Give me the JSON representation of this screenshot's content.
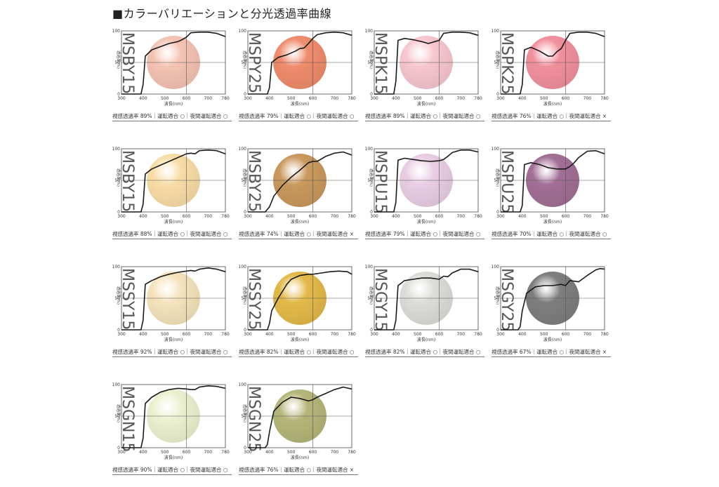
{
  "page_title": "■カラーバリエーションと分光透過率曲線",
  "axis": {
    "x_ticks": [
      "300",
      "400",
      "500",
      "600",
      "700",
      "780"
    ],
    "y_ticks": [
      "100",
      "50",
      "0"
    ],
    "y_label": "透過率(%)",
    "x_label": "波長(nm)"
  },
  "chart_data": [
    {
      "type": "line",
      "title": "MSBY15",
      "swatch_color": "#f4c3b3",
      "xlabel": "波長(nm)",
      "ylabel": "透過率(%)",
      "xlim": [
        300,
        780
      ],
      "ylim": [
        0,
        100
      ],
      "x": [
        300,
        390,
        400,
        410,
        440,
        480,
        520,
        560,
        580,
        600,
        620,
        660,
        700,
        740,
        780
      ],
      "y": [
        0,
        0,
        15,
        60,
        70,
        75,
        80,
        83,
        86,
        90,
        97,
        98,
        98,
        96,
        91
      ],
      "spec": {
        "visible_transmittance": "視感透過率 89%",
        "driving": "運転適合 ○",
        "night_driving": "夜間運転適合 ○"
      }
    },
    {
      "type": "line",
      "title": "MSPY25",
      "swatch_color": "#ef8c6c",
      "xlabel": "波長(nm)",
      "ylabel": "透過率(%)",
      "xlim": [
        300,
        780
      ],
      "ylim": [
        0,
        100
      ],
      "x": [
        300,
        390,
        400,
        410,
        440,
        480,
        520,
        540,
        560,
        580,
        600,
        620,
        660,
        700,
        740,
        780
      ],
      "y": [
        0,
        0,
        10,
        50,
        58,
        62,
        68,
        72,
        73,
        80,
        88,
        94,
        97,
        98,
        97,
        93
      ],
      "spec": {
        "visible_transmittance": "視感透過率 79%",
        "driving": "運転適合 ○",
        "night_driving": "夜間運転適合 ○"
      }
    },
    {
      "type": "line",
      "title": "MSPK15",
      "swatch_color": "#f7c6cf",
      "xlabel": "波長(nm)",
      "ylabel": "透過率(%)",
      "xlim": [
        300,
        780
      ],
      "ylim": [
        0,
        100
      ],
      "x": [
        300,
        390,
        400,
        410,
        440,
        480,
        520,
        550,
        580,
        600,
        620,
        660,
        700,
        740,
        780
      ],
      "y": [
        0,
        0,
        20,
        85,
        88,
        86,
        83,
        80,
        83,
        85,
        96,
        98,
        98,
        97,
        93
      ],
      "spec": {
        "visible_transmittance": "視感透過率 89%",
        "driving": "運転適合 ○",
        "night_driving": "夜間運転適合 ○"
      }
    },
    {
      "type": "line",
      "title": "MSPK25",
      "swatch_color": "#f1909d",
      "xlabel": "波長(nm)",
      "ylabel": "透過率(%)",
      "xlim": [
        300,
        780
      ],
      "ylim": [
        0,
        100
      ],
      "x": [
        300,
        390,
        400,
        410,
        440,
        480,
        520,
        540,
        560,
        580,
        600,
        620,
        660,
        700,
        740,
        780
      ],
      "y": [
        0,
        0,
        15,
        70,
        74,
        68,
        60,
        60,
        67,
        72,
        85,
        96,
        98,
        98,
        96,
        91
      ],
      "spec": {
        "visible_transmittance": "視感透過率 76%",
        "driving": "運転適合 ○",
        "night_driving": "夜間運転適合 ×"
      }
    },
    {
      "type": "line",
      "title": "MSBY15",
      "swatch_color": "#f9dda6",
      "xlabel": "波長(nm)",
      "ylabel": "透過率(%)",
      "xlim": [
        300,
        780
      ],
      "ylim": [
        0,
        100
      ],
      "x": [
        300,
        390,
        400,
        410,
        440,
        480,
        520,
        560,
        600,
        620,
        640,
        660,
        700,
        740,
        780
      ],
      "y": [
        0,
        0,
        12,
        60,
        68,
        74,
        80,
        86,
        92,
        93,
        92,
        97,
        98,
        97,
        92
      ],
      "spec": {
        "visible_transmittance": "視感透過率 88%",
        "driving": "運転適合 ○",
        "night_driving": "夜間運転適合 ○"
      }
    },
    {
      "type": "line",
      "title": "MSBY25",
      "swatch_color": "#c9995e",
      "xlabel": "波長(nm)",
      "ylabel": "透過率(%)",
      "xlim": [
        300,
        780
      ],
      "ylim": [
        0,
        100
      ],
      "x": [
        300,
        380,
        400,
        420,
        460,
        500,
        540,
        580,
        600,
        620,
        660,
        700,
        740,
        780
      ],
      "y": [
        0,
        0,
        8,
        25,
        42,
        55,
        66,
        78,
        80,
        80,
        88,
        93,
        95,
        90
      ],
      "spec": {
        "visible_transmittance": "視感透過率 74%",
        "driving": "運転適合 ○",
        "night_driving": "夜間運転適合 ×"
      }
    },
    {
      "type": "line",
      "title": "MSPU15",
      "swatch_color": "#e9cde4",
      "xlabel": "波長(nm)",
      "ylabel": "透過率(%)",
      "xlim": [
        300,
        780
      ],
      "ylim": [
        0,
        100
      ],
      "x": [
        300,
        390,
        400,
        410,
        440,
        480,
        520,
        560,
        600,
        620,
        640,
        660,
        700,
        740,
        780
      ],
      "y": [
        0,
        0,
        15,
        82,
        85,
        83,
        81,
        80,
        81,
        83,
        88,
        94,
        98,
        98,
        95
      ],
      "spec": {
        "visible_transmittance": "視感透過率 79%",
        "driving": "運転適合 ○",
        "night_driving": "夜間運転適合 ○"
      }
    },
    {
      "type": "line",
      "title": "MSPU25",
      "swatch_color": "#a26f96",
      "xlabel": "波長(nm)",
      "ylabel": "透過率(%)",
      "xlim": [
        300,
        780
      ],
      "ylim": [
        0,
        100
      ],
      "x": [
        300,
        390,
        400,
        410,
        440,
        480,
        520,
        560,
        600,
        620,
        640,
        660,
        700,
        740,
        780
      ],
      "y": [
        0,
        0,
        10,
        75,
        78,
        75,
        70,
        68,
        68,
        72,
        78,
        86,
        96,
        97,
        92
      ],
      "spec": {
        "visible_transmittance": "視感透過率 70%",
        "driving": "運転適合 ○",
        "night_driving": "夜間運転適合 ○"
      }
    },
    {
      "type": "line",
      "title": "MSSY15",
      "swatch_color": "#f5e3bc",
      "xlabel": "波長(nm)",
      "ylabel": "透過率(%)",
      "xlim": [
        300,
        780
      ],
      "ylim": [
        0,
        100
      ],
      "x": [
        300,
        390,
        400,
        410,
        440,
        480,
        520,
        560,
        600,
        620,
        640,
        660,
        700,
        740,
        780
      ],
      "y": [
        0,
        0,
        15,
        72,
        78,
        84,
        88,
        91,
        93,
        94,
        93,
        96,
        98,
        96,
        92
      ],
      "spec": {
        "visible_transmittance": "視感透過率 92%",
        "driving": "運転適合 ○",
        "night_driving": "夜間運転適合 ○"
      }
    },
    {
      "type": "line",
      "title": "MSSY25",
      "swatch_color": "#e3b949",
      "xlabel": "波長(nm)",
      "ylabel": "透過率(%)",
      "xlim": [
        300,
        780
      ],
      "ylim": [
        0,
        100
      ],
      "x": [
        300,
        390,
        400,
        410,
        440,
        480,
        500,
        540,
        580,
        600,
        640,
        680,
        720,
        760,
        780
      ],
      "y": [
        0,
        0,
        10,
        30,
        50,
        72,
        80,
        86,
        88,
        88,
        90,
        92,
        93,
        92,
        88
      ],
      "spec": {
        "visible_transmittance": "視感透過率 82%",
        "driving": "運転適合 ○",
        "night_driving": "夜間運転適合 ○"
      }
    },
    {
      "type": "line",
      "title": "MSGY15",
      "swatch_color": "#dcdcd8",
      "xlabel": "波長(nm)",
      "ylabel": "透過率(%)",
      "xlim": [
        300,
        780
      ],
      "ylim": [
        0,
        100
      ],
      "x": [
        300,
        390,
        400,
        410,
        440,
        480,
        520,
        560,
        600,
        620,
        640,
        660,
        700,
        740,
        780
      ],
      "y": [
        0,
        0,
        15,
        70,
        78,
        80,
        82,
        82,
        80,
        85,
        84,
        90,
        96,
        96,
        92
      ],
      "spec": {
        "visible_transmittance": "視感透過率 82%",
        "driving": "運転適合 ○",
        "night_driving": "夜間運転適合 ○"
      }
    },
    {
      "type": "line",
      "title": "MSGY25",
      "swatch_color": "#7e7e7e",
      "xlabel": "波長(nm)",
      "ylabel": "透過率(%)",
      "xlim": [
        300,
        780
      ],
      "ylim": [
        0,
        100
      ],
      "x": [
        300,
        380,
        390,
        400,
        420,
        460,
        500,
        540,
        580,
        600,
        620,
        660,
        700,
        740,
        760,
        780
      ],
      "y": [
        0,
        0,
        5,
        30,
        58,
        68,
        70,
        70,
        72,
        70,
        78,
        76,
        86,
        95,
        97,
        96
      ],
      "spec": {
        "visible_transmittance": "視感透過率 67%",
        "driving": "運転適合 ○",
        "night_driving": "夜間運転適合 ×"
      }
    },
    {
      "type": "line",
      "title": "MSGN15",
      "swatch_color": "#eaf1cf",
      "xlabel": "波長(nm)",
      "ylabel": "透過率(%)",
      "xlim": [
        300,
        780
      ],
      "ylim": [
        0,
        100
      ],
      "x": [
        300,
        390,
        400,
        410,
        440,
        480,
        520,
        560,
        600,
        620,
        640,
        660,
        700,
        740,
        780
      ],
      "y": [
        0,
        0,
        15,
        70,
        80,
        88,
        92,
        94,
        93,
        92,
        92,
        96,
        98,
        97,
        94
      ],
      "spec": {
        "visible_transmittance": "視感透過率 90%",
        "driving": "運転適合 ○",
        "night_driving": "夜間運転適合 ○"
      }
    },
    {
      "type": "line",
      "title": "MSGN25",
      "swatch_color": "#b4b679",
      "xlabel": "波長(nm)",
      "ylabel": "透過率(%)",
      "xlim": [
        300,
        780
      ],
      "ylim": [
        0,
        100
      ],
      "x": [
        300,
        380,
        390,
        400,
        420,
        460,
        500,
        540,
        580,
        600,
        620,
        660,
        700,
        740,
        780
      ],
      "y": [
        0,
        0,
        5,
        25,
        58,
        72,
        80,
        78,
        74,
        76,
        80,
        86,
        92,
        96,
        93
      ],
      "spec": {
        "visible_transmittance": "視感透過率 76%",
        "driving": "運転適合 ○",
        "night_driving": "夜間運転適合 ×"
      }
    }
  ]
}
